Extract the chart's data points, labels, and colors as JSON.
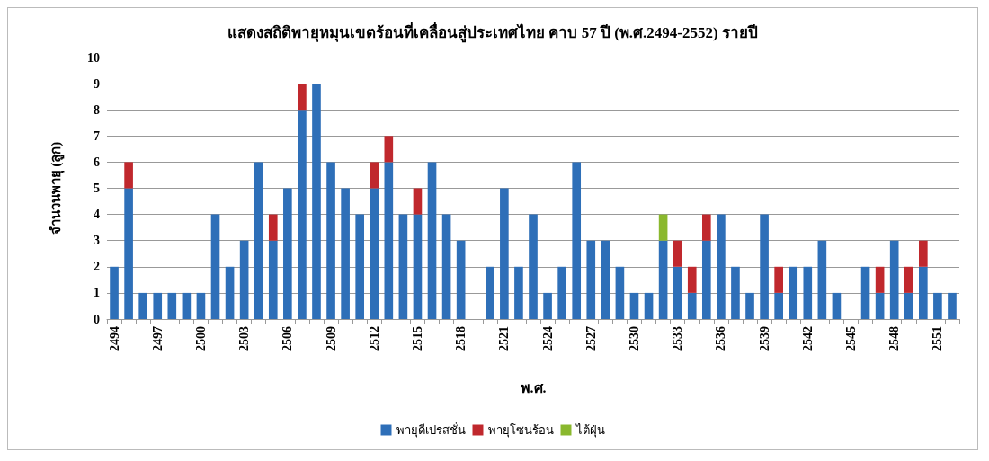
{
  "chart_data": {
    "type": "bar",
    "title": "แสดงสถิติพายุหมุนเขตร้อนที่เคลื่อนสู่ประเทศไทย คาบ 57 ปี (พ.ศ.2494-2552) รายปี",
    "xlabel": "พ.ศ.",
    "ylabel": "จำนวนพายุ (ลูก)",
    "categories": [
      "2494",
      null,
      null,
      "2497",
      null,
      null,
      "2500",
      null,
      null,
      "2503",
      null,
      null,
      "2506",
      null,
      null,
      "2509",
      null,
      null,
      "2512",
      null,
      null,
      "2515",
      null,
      null,
      "2518",
      null,
      null,
      "2521",
      null,
      null,
      "2524",
      null,
      null,
      "2527",
      null,
      null,
      "2530",
      null,
      null,
      "2533",
      null,
      null,
      "2536",
      null,
      null,
      "2539",
      null,
      null,
      "2542",
      null,
      null,
      "2545",
      null,
      null,
      "2548",
      null,
      null,
      "2551",
      null
    ],
    "stacked": true,
    "series": [
      {
        "name": "พายุดีเปรสชั่น",
        "color": "#2e6fb8",
        "values": [
          2,
          5,
          1,
          1,
          1,
          1,
          1,
          4,
          2,
          3,
          6,
          3,
          5,
          8,
          9,
          6,
          5,
          4,
          5,
          6,
          4,
          4,
          6,
          4,
          3,
          0,
          2,
          5,
          2,
          4,
          1,
          2,
          6,
          3,
          3,
          2,
          1,
          1,
          3,
          2,
          1,
          3,
          4,
          2,
          1,
          4,
          1,
          2,
          2,
          3,
          1,
          0,
          2,
          1,
          3,
          1,
          2,
          1,
          1
        ]
      },
      {
        "name": "พายุโซนร้อน",
        "color": "#c0282d",
        "values": [
          0,
          1,
          0,
          0,
          0,
          0,
          0,
          0,
          0,
          0,
          0,
          1,
          0,
          1,
          0,
          0,
          0,
          0,
          1,
          1,
          0,
          1,
          0,
          0,
          0,
          0,
          0,
          0,
          0,
          0,
          0,
          0,
          0,
          0,
          0,
          0,
          0,
          0,
          0,
          1,
          1,
          1,
          0,
          0,
          0,
          0,
          1,
          0,
          0,
          0,
          0,
          0,
          0,
          1,
          0,
          1,
          1,
          0,
          0
        ]
      },
      {
        "name": "ไต้ฝุ่น",
        "color": "#8ab82e",
        "values": [
          0,
          0,
          0,
          0,
          0,
          0,
          0,
          0,
          0,
          0,
          0,
          0,
          0,
          0,
          0,
          0,
          0,
          0,
          0,
          0,
          0,
          0,
          0,
          0,
          0,
          0,
          0,
          0,
          0,
          0,
          0,
          0,
          0,
          0,
          0,
          0,
          0,
          0,
          1,
          0,
          0,
          0,
          0,
          0,
          0,
          0,
          0,
          0,
          0,
          0,
          0,
          0,
          0,
          0,
          0,
          0,
          0,
          0,
          0
        ]
      }
    ],
    "ylim": [
      0,
      10
    ],
    "yticks": [
      0,
      1,
      2,
      3,
      4,
      5,
      6,
      7,
      8,
      9,
      10
    ],
    "grid": "y",
    "legend": "bottom"
  }
}
